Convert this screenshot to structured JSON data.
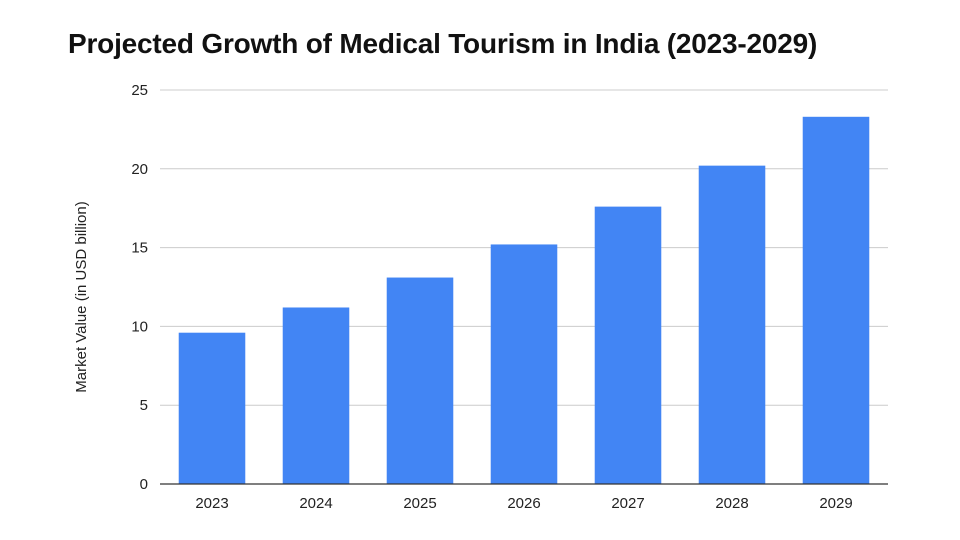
{
  "chart_data": {
    "type": "bar",
    "title": "Projected Growth of Medical Tourism in India (2023-2029)",
    "xlabel": "",
    "ylabel": "Market Value (in USD billion)",
    "categories": [
      "2023",
      "2024",
      "2025",
      "2026",
      "2027",
      "2028",
      "2029"
    ],
    "values": [
      9.6,
      11.2,
      13.1,
      15.2,
      17.6,
      20.2,
      23.3
    ],
    "ylim": [
      0,
      25
    ],
    "yticks": [
      0,
      5,
      10,
      15,
      20,
      25
    ],
    "grid": true,
    "legend": "none",
    "bar_color": "#4285f4",
    "grid_color": "#cccccc",
    "axis_color": "#333333"
  }
}
